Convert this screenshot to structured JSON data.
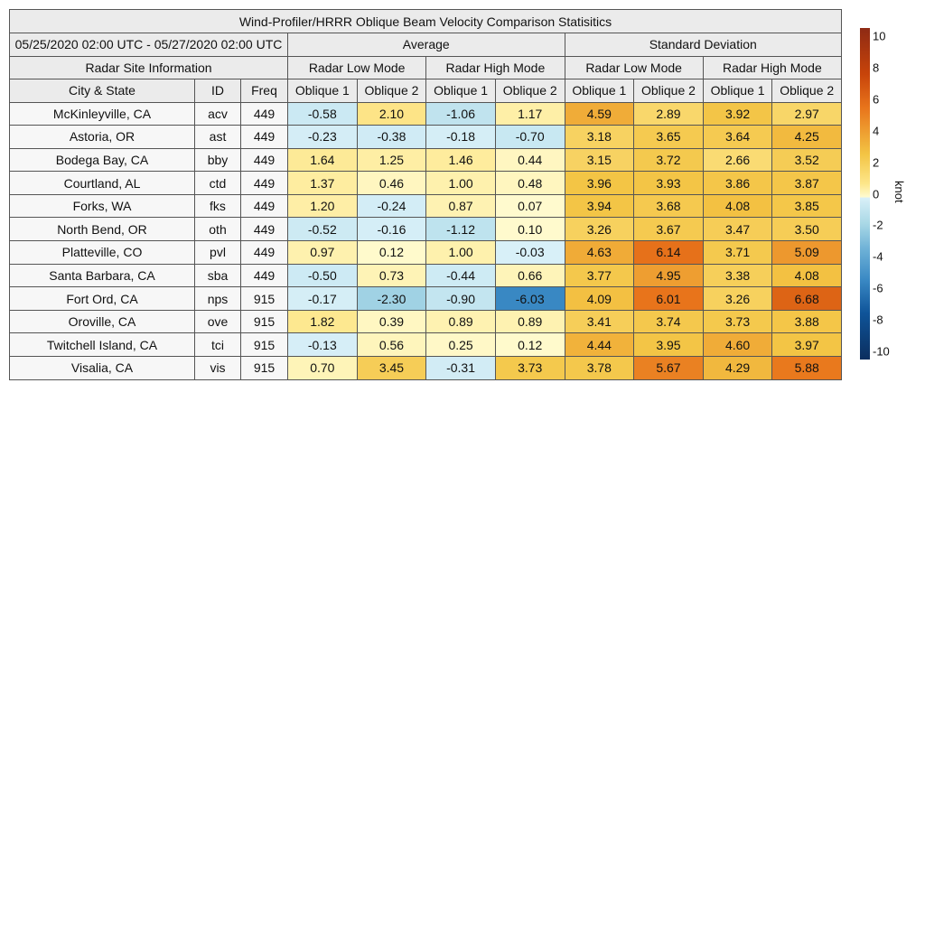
{
  "chart_data": {
    "type": "table",
    "title": "Wind-Profiler/HRRR Oblique Beam Velocity Comparison Statisitics",
    "date_range": "05/25/2020 02:00 UTC - 05/27/2020 02:00 UTC",
    "groups": {
      "average": "Average",
      "std": "Standard Deviation",
      "site_info": "Radar Site Information"
    },
    "modes": [
      "Radar Low Mode",
      "Radar High Mode",
      "Radar Low Mode",
      "Radar High Mode"
    ],
    "columns": [
      "City & State",
      "ID",
      "Freq",
      "Oblique 1",
      "Oblique 2",
      "Oblique 1",
      "Oblique 2",
      "Oblique 1",
      "Oblique 2",
      "Oblique 1",
      "Oblique 2"
    ],
    "rows": [
      {
        "city": "McKinleyville, CA",
        "id": "acv",
        "freq": "449",
        "values": [
          "-0.58",
          "2.10",
          "-1.06",
          "1.17",
          "4.59",
          "2.89",
          "3.92",
          "2.97"
        ]
      },
      {
        "city": "Astoria, OR",
        "id": "ast",
        "freq": "449",
        "values": [
          "-0.23",
          "-0.38",
          "-0.18",
          "-0.70",
          "3.18",
          "3.65",
          "3.64",
          "4.25"
        ]
      },
      {
        "city": "Bodega Bay, CA",
        "id": "bby",
        "freq": "449",
        "values": [
          "1.64",
          "1.25",
          "1.46",
          "0.44",
          "3.15",
          "3.72",
          "2.66",
          "3.52"
        ]
      },
      {
        "city": "Courtland, AL",
        "id": "ctd",
        "freq": "449",
        "values": [
          "1.37",
          "0.46",
          "1.00",
          "0.48",
          "3.96",
          "3.93",
          "3.86",
          "3.87"
        ]
      },
      {
        "city": "Forks, WA",
        "id": "fks",
        "freq": "449",
        "values": [
          "1.20",
          "-0.24",
          "0.87",
          "0.07",
          "3.94",
          "3.68",
          "4.08",
          "3.85"
        ]
      },
      {
        "city": "North Bend, OR",
        "id": "oth",
        "freq": "449",
        "values": [
          "-0.52",
          "-0.16",
          "-1.12",
          "0.10",
          "3.26",
          "3.67",
          "3.47",
          "3.50"
        ]
      },
      {
        "city": "Platteville, CO",
        "id": "pvl",
        "freq": "449",
        "values": [
          "0.97",
          "0.12",
          "1.00",
          "-0.03",
          "4.63",
          "6.14",
          "3.71",
          "5.09"
        ]
      },
      {
        "city": "Santa Barbara, CA",
        "id": "sba",
        "freq": "449",
        "values": [
          "-0.50",
          "0.73",
          "-0.44",
          "0.66",
          "3.77",
          "4.95",
          "3.38",
          "4.08"
        ]
      },
      {
        "city": "Fort Ord, CA",
        "id": "nps",
        "freq": "915",
        "values": [
          "-0.17",
          "-2.30",
          "-0.90",
          "-6.03",
          "4.09",
          "6.01",
          "3.26",
          "6.68"
        ]
      },
      {
        "city": "Oroville, CA",
        "id": "ove",
        "freq": "915",
        "values": [
          "1.82",
          "0.39",
          "0.89",
          "0.89",
          "3.41",
          "3.74",
          "3.73",
          "3.88"
        ]
      },
      {
        "city": "Twitchell Island, CA",
        "id": "tci",
        "freq": "915",
        "values": [
          "-0.13",
          "0.56",
          "0.25",
          "0.12",
          "4.44",
          "3.95",
          "4.60",
          "3.97"
        ]
      },
      {
        "city": "Visalia, CA",
        "id": "vis",
        "freq": "915",
        "values": [
          "0.70",
          "3.45",
          "-0.31",
          "3.73",
          "3.78",
          "5.67",
          "4.29",
          "5.88"
        ]
      }
    ],
    "colorbar": {
      "label": "knot",
      "range": [
        -10.5,
        10.5
      ],
      "ticks": [
        "10",
        "8",
        "6",
        "4",
        "2",
        "0",
        "-2",
        "-4",
        "-6",
        "-8",
        "-10"
      ]
    },
    "colors": {
      "neg_max": "#0b2e5e",
      "zero_neg": "#d9f0f8",
      "zero_pos": "#fffbd0",
      "pos_max": "#8e2a14"
    }
  }
}
